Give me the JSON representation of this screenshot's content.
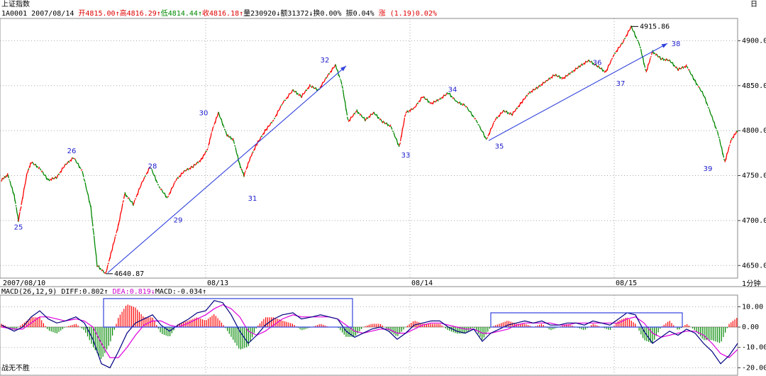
{
  "window": {
    "title": "上证指数",
    "corner_label": "日",
    "period_label": "1分钟",
    "footer_label": "战无不胜"
  },
  "quote": {
    "code": "1A0001",
    "date": "2007/08/14",
    "open_label": "开",
    "open": "4815.00",
    "open_arrow": "↑",
    "high_label": "高",
    "high": "4816.29",
    "high_arrow": "↑",
    "low_label": "低",
    "low": "4814.44",
    "low_arrow": "↑",
    "close_label": "收",
    "close": "4816.18",
    "close_arrow": "↑",
    "volume_label": "量",
    "volume": "230920",
    "volume_arrow": "↓",
    "amount_label": "额",
    "amount": "31372",
    "amount_arrow": "↓",
    "turnover_label": "换",
    "turnover": "0.00%",
    "amplitude_label": "振",
    "amplitude": "0.04%",
    "change_label": "涨",
    "change": "(1.19)0.02%"
  },
  "macd_header": {
    "name": "MACD(26,12,9)",
    "diff_label": "DIFF:",
    "diff": "0.802",
    "diff_arrow": "↑",
    "dea_label": "DEA:",
    "dea": "0.819",
    "dea_arrow": "↓",
    "macd_label": "MACD:",
    "macd": "-0.034",
    "macd_arrow": "↑"
  },
  "colors": {
    "up": "#ff0000",
    "down": "#008800",
    "diff_line": "#000080",
    "dea_line": "#dd00dd",
    "trend_line": "#3344dd",
    "grid": "#aaaaaa",
    "label": "#1a1acc"
  },
  "chart_data": [
    {
      "type": "line",
      "title": "上证指数",
      "y_ticks": [
        4650,
        4700,
        4750,
        4800,
        4850,
        4900
      ],
      "y_tick_labels": [
        "4650.00",
        "4700.00",
        "4750.00",
        "4800.00",
        "4850.00",
        "4900.00"
      ],
      "ylim": [
        4636,
        4924
      ],
      "x_ticks": [
        {
          "label": "2007/08/10",
          "x": 0
        },
        {
          "label": "08/13",
          "x": 96
        },
        {
          "label": "08/14",
          "x": 192
        },
        {
          "label": "08/15",
          "x": 288
        }
      ],
      "x_range": [
        0,
        346
      ],
      "grid": true,
      "series": [
        {
          "points": [
            [
              0,
              4745
            ],
            [
              3,
              4751
            ],
            [
              6,
              4728
            ],
            [
              8,
              4700
            ],
            [
              12,
              4752
            ],
            [
              14,
              4765
            ],
            [
              18,
              4758
            ],
            [
              22,
              4745
            ],
            [
              26,
              4748
            ],
            [
              30,
              4762
            ],
            [
              34,
              4770
            ],
            [
              38,
              4755
            ],
            [
              42,
              4715
            ],
            [
              45,
              4650
            ],
            [
              49,
              4640.87
            ],
            [
              52,
              4668
            ],
            [
              55,
              4695
            ],
            [
              58,
              4730
            ],
            [
              62,
              4718
            ],
            [
              66,
              4742
            ],
            [
              70,
              4760
            ],
            [
              74,
              4738
            ],
            [
              78,
              4725
            ],
            [
              82,
              4745
            ],
            [
              86,
              4755
            ],
            [
              90,
              4760
            ],
            [
              94,
              4768
            ],
            [
              97,
              4780
            ],
            [
              99,
              4800
            ],
            [
              102,
              4820
            ],
            [
              106,
              4795
            ],
            [
              109,
              4790
            ],
            [
              112,
              4762
            ],
            [
              114,
              4750
            ],
            [
              117,
              4770
            ],
            [
              120,
              4785
            ],
            [
              124,
              4800
            ],
            [
              128,
              4812
            ],
            [
              132,
              4830
            ],
            [
              137,
              4845
            ],
            [
              141,
              4838
            ],
            [
              145,
              4850
            ],
            [
              149,
              4845
            ],
            [
              153,
              4860
            ],
            [
              157,
              4873
            ],
            [
              160,
              4852
            ],
            [
              163,
              4810
            ],
            [
              167,
              4822
            ],
            [
              171,
              4812
            ],
            [
              175,
              4820
            ],
            [
              179,
              4810
            ],
            [
              183,
              4805
            ],
            [
              187,
              4782
            ],
            [
              190,
              4820
            ],
            [
              194,
              4825
            ],
            [
              198,
              4838
            ],
            [
              202,
              4830
            ],
            [
              206,
              4835
            ],
            [
              210,
              4842
            ],
            [
              214,
              4832
            ],
            [
              218,
              4828
            ],
            [
              223,
              4812
            ],
            [
              228,
              4790
            ],
            [
              232,
              4812
            ],
            [
              236,
              4822
            ],
            [
              240,
              4818
            ],
            [
              244,
              4830
            ],
            [
              248,
              4842
            ],
            [
              252,
              4848
            ],
            [
              256,
              4855
            ],
            [
              260,
              4862
            ],
            [
              264,
              4858
            ],
            [
              268,
              4865
            ],
            [
              272,
              4872
            ],
            [
              276,
              4878
            ],
            [
              280,
              4872
            ],
            [
              284,
              4865
            ],
            [
              288,
              4885
            ],
            [
              292,
              4898
            ],
            [
              296,
              4915.86
            ],
            [
              300,
              4895
            ],
            [
              303,
              4865
            ],
            [
              306,
              4888
            ],
            [
              310,
              4880
            ],
            [
              314,
              4878
            ],
            [
              318,
              4868
            ],
            [
              322,
              4872
            ],
            [
              326,
              4855
            ],
            [
              330,
              4840
            ],
            [
              334,
              4815
            ],
            [
              337,
              4795
            ],
            [
              340,
              4765
            ],
            [
              343,
              4790
            ],
            [
              346,
              4800
            ]
          ]
        }
      ],
      "annotations": [
        {
          "text": "4640.87",
          "x": 49,
          "y": 4640.87
        },
        {
          "text": "4915.86",
          "x": 296,
          "y": 4915.86
        }
      ],
      "wave_labels": [
        {
          "text": "25",
          "x": 8,
          "y": 4690
        },
        {
          "text": "26",
          "x": 33,
          "y": 4775
        },
        {
          "text": "28",
          "x": 71,
          "y": 4758
        },
        {
          "text": "29",
          "x": 83,
          "y": 4698
        },
        {
          "text": "30",
          "x": 95,
          "y": 4817
        },
        {
          "text": "31",
          "x": 118,
          "y": 4722
        },
        {
          "text": "32",
          "x": 152,
          "y": 4876
        },
        {
          "text": "33",
          "x": 190,
          "y": 4770
        },
        {
          "text": "34",
          "x": 212,
          "y": 4843
        },
        {
          "text": "35",
          "x": 234,
          "y": 4780
        },
        {
          "text": "36",
          "x": 280,
          "y": 4873
        },
        {
          "text": "37",
          "x": 291,
          "y": 4850
        },
        {
          "text": "38",
          "x": 317,
          "y": 4894
        },
        {
          "text": "39",
          "x": 332,
          "y": 4755
        }
      ],
      "trend_lines": [
        {
          "from": [
            50,
            4642
          ],
          "to": [
            162,
            4872
          ]
        },
        {
          "from": [
            229,
            4789
          ],
          "to": [
            313,
            4897
          ]
        }
      ]
    },
    {
      "type": "bar",
      "title": "MACD(26,12,9)",
      "y_ticks": [
        10,
        0,
        -10,
        -20
      ],
      "y_tick_labels": [
        "10.00",
        "0.00",
        "-10.00",
        "-20.00"
      ],
      "ylim": [
        -23,
        15
      ],
      "grid": true,
      "x_range": [
        0,
        346
      ],
      "diff": [
        [
          0,
          1
        ],
        [
          6,
          -2
        ],
        [
          10,
          0
        ],
        [
          14,
          5
        ],
        [
          18,
          8
        ],
        [
          22,
          4
        ],
        [
          26,
          2
        ],
        [
          30,
          3
        ],
        [
          35,
          5
        ],
        [
          39,
          2
        ],
        [
          43,
          -6
        ],
        [
          47,
          -18
        ],
        [
          51,
          -20
        ],
        [
          55,
          -12
        ],
        [
          59,
          -3
        ],
        [
          63,
          2
        ],
        [
          67,
          4
        ],
        [
          71,
          6
        ],
        [
          75,
          1
        ],
        [
          79,
          -2
        ],
        [
          83,
          1
        ],
        [
          88,
          4
        ],
        [
          92,
          7
        ],
        [
          96,
          8
        ],
        [
          100,
          13
        ],
        [
          104,
          12
        ],
        [
          108,
          6
        ],
        [
          112,
          -2
        ],
        [
          116,
          -8
        ],
        [
          120,
          -4
        ],
        [
          124,
          1
        ],
        [
          128,
          4
        ],
        [
          132,
          6
        ],
        [
          137,
          7
        ],
        [
          141,
          4
        ],
        [
          146,
          5
        ],
        [
          150,
          6
        ],
        [
          154,
          5
        ],
        [
          158,
          4
        ],
        [
          162,
          -2
        ],
        [
          166,
          -5
        ],
        [
          170,
          -3
        ],
        [
          174,
          -1
        ],
        [
          178,
          0
        ],
        [
          182,
          -2
        ],
        [
          186,
          -6
        ],
        [
          190,
          -3
        ],
        [
          194,
          1
        ],
        [
          198,
          2
        ],
        [
          202,
          3
        ],
        [
          206,
          3
        ],
        [
          210,
          0
        ],
        [
          214,
          -2
        ],
        [
          218,
          -3
        ],
        [
          222,
          -1
        ],
        [
          226,
          -7
        ],
        [
          230,
          -3
        ],
        [
          234,
          -1
        ],
        [
          238,
          1
        ],
        [
          242,
          2
        ],
        [
          246,
          3
        ],
        [
          250,
          2
        ],
        [
          254,
          3
        ],
        [
          258,
          1
        ],
        [
          262,
          1
        ],
        [
          266,
          2
        ],
        [
          270,
          2
        ],
        [
          274,
          1
        ],
        [
          278,
          3
        ],
        [
          282,
          2
        ],
        [
          286,
          1
        ],
        [
          290,
          4
        ],
        [
          294,
          7
        ],
        [
          298,
          6
        ],
        [
          302,
          -2
        ],
        [
          306,
          -8
        ],
        [
          310,
          -5
        ],
        [
          314,
          -2
        ],
        [
          318,
          -4
        ],
        [
          322,
          -1
        ],
        [
          326,
          -3
        ],
        [
          330,
          -8
        ],
        [
          334,
          -12
        ],
        [
          338,
          -18
        ],
        [
          342,
          -14
        ],
        [
          346,
          -8
        ]
      ],
      "dea": [
        [
          0,
          0
        ],
        [
          6,
          -1
        ],
        [
          10,
          -1
        ],
        [
          14,
          2
        ],
        [
          18,
          5
        ],
        [
          22,
          5
        ],
        [
          26,
          4
        ],
        [
          30,
          3
        ],
        [
          35,
          4
        ],
        [
          39,
          3
        ],
        [
          43,
          0
        ],
        [
          47,
          -8
        ],
        [
          51,
          -15
        ],
        [
          55,
          -15
        ],
        [
          59,
          -10
        ],
        [
          63,
          -4
        ],
        [
          67,
          1
        ],
        [
          71,
          3
        ],
        [
          75,
          3
        ],
        [
          79,
          1
        ],
        [
          83,
          0
        ],
        [
          88,
          2
        ],
        [
          92,
          4
        ],
        [
          96,
          6
        ],
        [
          100,
          9
        ],
        [
          104,
          11
        ],
        [
          108,
          9
        ],
        [
          112,
          5
        ],
        [
          116,
          -2
        ],
        [
          120,
          -4
        ],
        [
          124,
          -2
        ],
        [
          128,
          1
        ],
        [
          132,
          4
        ],
        [
          137,
          6
        ],
        [
          141,
          5
        ],
        [
          146,
          5
        ],
        [
          150,
          5
        ],
        [
          154,
          5
        ],
        [
          158,
          4
        ],
        [
          162,
          1
        ],
        [
          166,
          -2
        ],
        [
          170,
          -3
        ],
        [
          174,
          -2
        ],
        [
          178,
          -1
        ],
        [
          182,
          -1
        ],
        [
          186,
          -3
        ],
        [
          190,
          -3
        ],
        [
          194,
          -1
        ],
        [
          198,
          1
        ],
        [
          202,
          2
        ],
        [
          206,
          2
        ],
        [
          210,
          1
        ],
        [
          214,
          0
        ],
        [
          218,
          -1
        ],
        [
          222,
          -1
        ],
        [
          226,
          -3
        ],
        [
          230,
          -3
        ],
        [
          234,
          -2
        ],
        [
          238,
          -1
        ],
        [
          242,
          1
        ],
        [
          246,
          2
        ],
        [
          250,
          2
        ],
        [
          254,
          2
        ],
        [
          258,
          2
        ],
        [
          262,
          1
        ],
        [
          266,
          1
        ],
        [
          270,
          2
        ],
        [
          274,
          2
        ],
        [
          278,
          2
        ],
        [
          282,
          2
        ],
        [
          286,
          2
        ],
        [
          290,
          2
        ],
        [
          294,
          4
        ],
        [
          298,
          5
        ],
        [
          302,
          2
        ],
        [
          306,
          -3
        ],
        [
          310,
          -5
        ],
        [
          314,
          -4
        ],
        [
          318,
          -3
        ],
        [
          322,
          -2
        ],
        [
          326,
          -2
        ],
        [
          330,
          -4
        ],
        [
          334,
          -8
        ],
        [
          338,
          -13
        ],
        [
          342,
          -15
        ],
        [
          346,
          -11
        ]
      ],
      "boxes": [
        {
          "x0": 48,
          "x1": 165,
          "y0": 0,
          "y1": 14
        },
        {
          "x0": 230,
          "x1": 320,
          "y0": 0,
          "y1": 7
        }
      ]
    }
  ]
}
